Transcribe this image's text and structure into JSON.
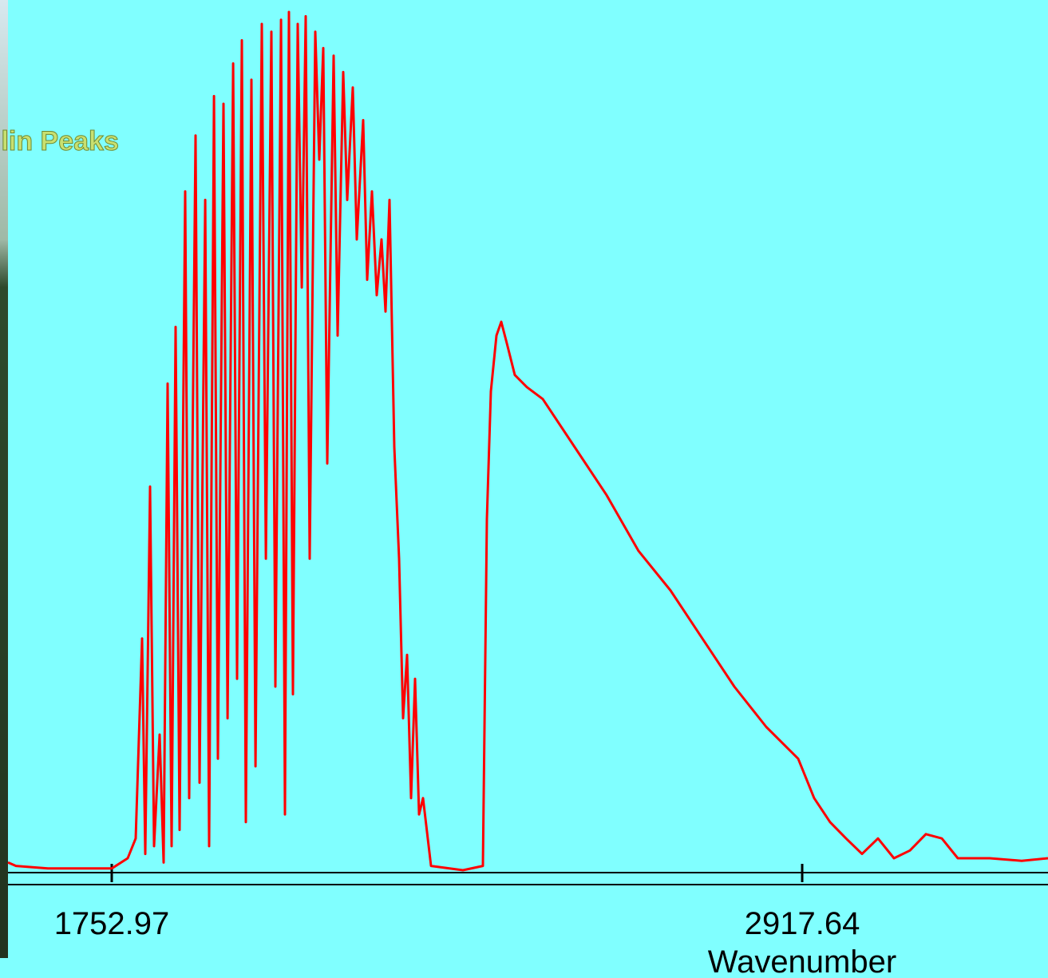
{
  "chart_data": {
    "type": "line",
    "annotation": "ilin Peaks",
    "x_label": "Wavenumber",
    "color": "#ff0000",
    "x": [
      1577.9,
      1591.4,
      1645.3,
      1753.0,
      1779.9,
      1793.4,
      1804.1,
      1809.5,
      1817.6,
      1824.3,
      1833.8,
      1840.5,
      1847.2,
      1854.0,
      1860.7,
      1867.4,
      1876.9,
      1883.6,
      1894.4,
      1901.1,
      1910.6,
      1917.3,
      1925.4,
      1932.1,
      1941.5,
      1948.3,
      1957.7,
      1964.4,
      1972.5,
      1979.2,
      1988.6,
      1995.4,
      2006.1,
      2012.9,
      2022.3,
      2029.0,
      2038.5,
      2045.2,
      2051.9,
      2058.6,
      2066.7,
      2073.5,
      2080.2,
      2086.9,
      2096.3,
      2103.1,
      2109.8,
      2116.5,
      2127.3,
      2134.0,
      2143.4,
      2150.2,
      2159.6,
      2166.3,
      2177.1,
      2183.8,
      2191.9,
      2200.0,
      2208.1,
      2214.8,
      2221.5,
      2229.6,
      2237.7,
      2244.4,
      2251.1,
      2257.9,
      2264.6,
      2271.3,
      2278.1,
      2291.5,
      2345.4,
      2379.1,
      2385.8,
      2392.5,
      2401.9,
      2410.0,
      2419.4,
      2432.9,
      2453.1,
      2480.0,
      2533.9,
      2587.7,
      2641.6,
      2695.4,
      2749.3,
      2803.1,
      2857.0,
      2910.9,
      2937.8,
      2964.7,
      2991.6,
      3018.6,
      3045.5,
      3072.4,
      3099.4,
      3126.3,
      3153.2,
      3180.2,
      3234.0,
      3287.9,
      3332.3
    ],
    "values": [
      0.009,
      0.005,
      0.002,
      0.002,
      0.014,
      0.037,
      0.27,
      0.019,
      0.447,
      0.028,
      0.158,
      0.009,
      0.567,
      0.028,
      0.633,
      0.047,
      0.791,
      0.084,
      0.856,
      0.102,
      0.781,
      0.028,
      0.902,
      0.13,
      0.893,
      0.177,
      0.94,
      0.223,
      0.967,
      0.056,
      0.921,
      0.121,
      0.986,
      0.363,
      0.977,
      0.214,
      0.991,
      0.065,
      1.0,
      0.205,
      0.986,
      0.679,
      0.995,
      0.363,
      0.977,
      0.828,
      0.958,
      0.474,
      0.949,
      0.623,
      0.93,
      0.781,
      0.912,
      0.735,
      0.874,
      0.688,
      0.791,
      0.67,
      0.735,
      0.651,
      0.781,
      0.493,
      0.363,
      0.177,
      0.251,
      0.084,
      0.223,
      0.065,
      0.084,
      0.005,
      0,
      0.005,
      0.409,
      0.558,
      0.623,
      0.639,
      0.614,
      0.577,
      0.563,
      0.549,
      0.493,
      0.437,
      0.372,
      0.326,
      0.27,
      0.214,
      0.167,
      0.13,
      0.084,
      0.056,
      0.037,
      0.019,
      0.037,
      0.014,
      0.023,
      0.042,
      0.037,
      0.014,
      0.014,
      0.011,
      0.014
    ],
    "xlim": [
      1577.94,
      3332.3
    ],
    "ylim": [
      0,
      1
    ],
    "xticks": [
      1752.97,
      2917.64
    ]
  }
}
